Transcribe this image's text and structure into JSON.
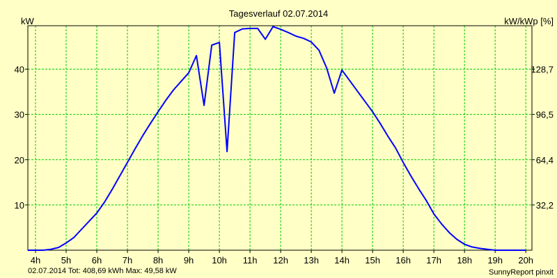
{
  "chart_data": {
    "type": "line",
    "title": "Tagesverlauf 02.07.2014",
    "ylabel_left": "kW",
    "ylabel_right": "kW/kWp [%]",
    "x_tick_labels": [
      "4h",
      "5h",
      "6h",
      "7h",
      "8h",
      "9h",
      "10h",
      "11h",
      "12h",
      "13h",
      "14h",
      "15h",
      "16h",
      "17h",
      "18h",
      "19h",
      "20h"
    ],
    "y_tick_labels_left": [
      "10",
      "20",
      "30",
      "40"
    ],
    "y_tick_labels_right": [
      "32,2",
      "64,4",
      "96,5",
      "128,7"
    ],
    "xlim": [
      3.75,
      20.2
    ],
    "ylim": [
      0,
      49.6
    ],
    "grid": true,
    "footer_left": "02.07.2014 Tot: 408,69 kWh Max: 49,58 kW",
    "footer_right": "SunnyReport pinxit",
    "colors": {
      "background": "#ffffc6",
      "line": "#0000ff",
      "grid": "#00cc00",
      "footer_left": "#0000ff"
    },
    "series": [
      {
        "x": [
          3.75,
          4.25,
          4.5,
          4.75,
          5.0,
          5.25,
          5.5,
          5.75,
          6.0,
          6.25,
          6.5,
          6.75,
          7.0,
          7.25,
          7.5,
          7.75,
          8.0,
          8.25,
          8.5,
          8.75,
          9.0,
          9.25,
          9.5,
          9.75,
          10.0,
          10.25,
          10.5,
          10.75,
          11.0,
          11.25,
          11.5,
          11.75,
          12.0,
          12.25,
          12.5,
          12.75,
          13.0,
          13.25,
          13.5,
          13.75,
          14.0,
          14.25,
          14.5,
          14.75,
          15.0,
          15.25,
          15.5,
          15.75,
          16.0,
          16.25,
          16.5,
          16.75,
          17.0,
          17.25,
          17.5,
          17.75,
          18.0,
          18.25,
          18.5,
          18.75,
          19.0,
          19.25,
          19.5,
          19.75,
          20.0
        ],
        "values": [
          0,
          0,
          0.2,
          0.6,
          1.6,
          2.8,
          4.6,
          6.4,
          8.2,
          10.6,
          13.4,
          16.4,
          19.4,
          22.4,
          25.3,
          28.0,
          30.6,
          33.1,
          35.4,
          37.3,
          39.2,
          43.0,
          32.0,
          45.3,
          45.9,
          21.8,
          48.1,
          48.9,
          49.0,
          49.0,
          46.6,
          49.4,
          48.8,
          48.1,
          47.3,
          46.8,
          46.0,
          44.2,
          40.3,
          34.7,
          39.8,
          37.5,
          35.2,
          32.9,
          30.6,
          28.0,
          25.2,
          22.6,
          19.4,
          16.4,
          13.6,
          11.0,
          8.0,
          5.8,
          3.9,
          2.4,
          1.3,
          0.7,
          0.4,
          0.2,
          0,
          0,
          0,
          0,
          0
        ]
      }
    ]
  }
}
